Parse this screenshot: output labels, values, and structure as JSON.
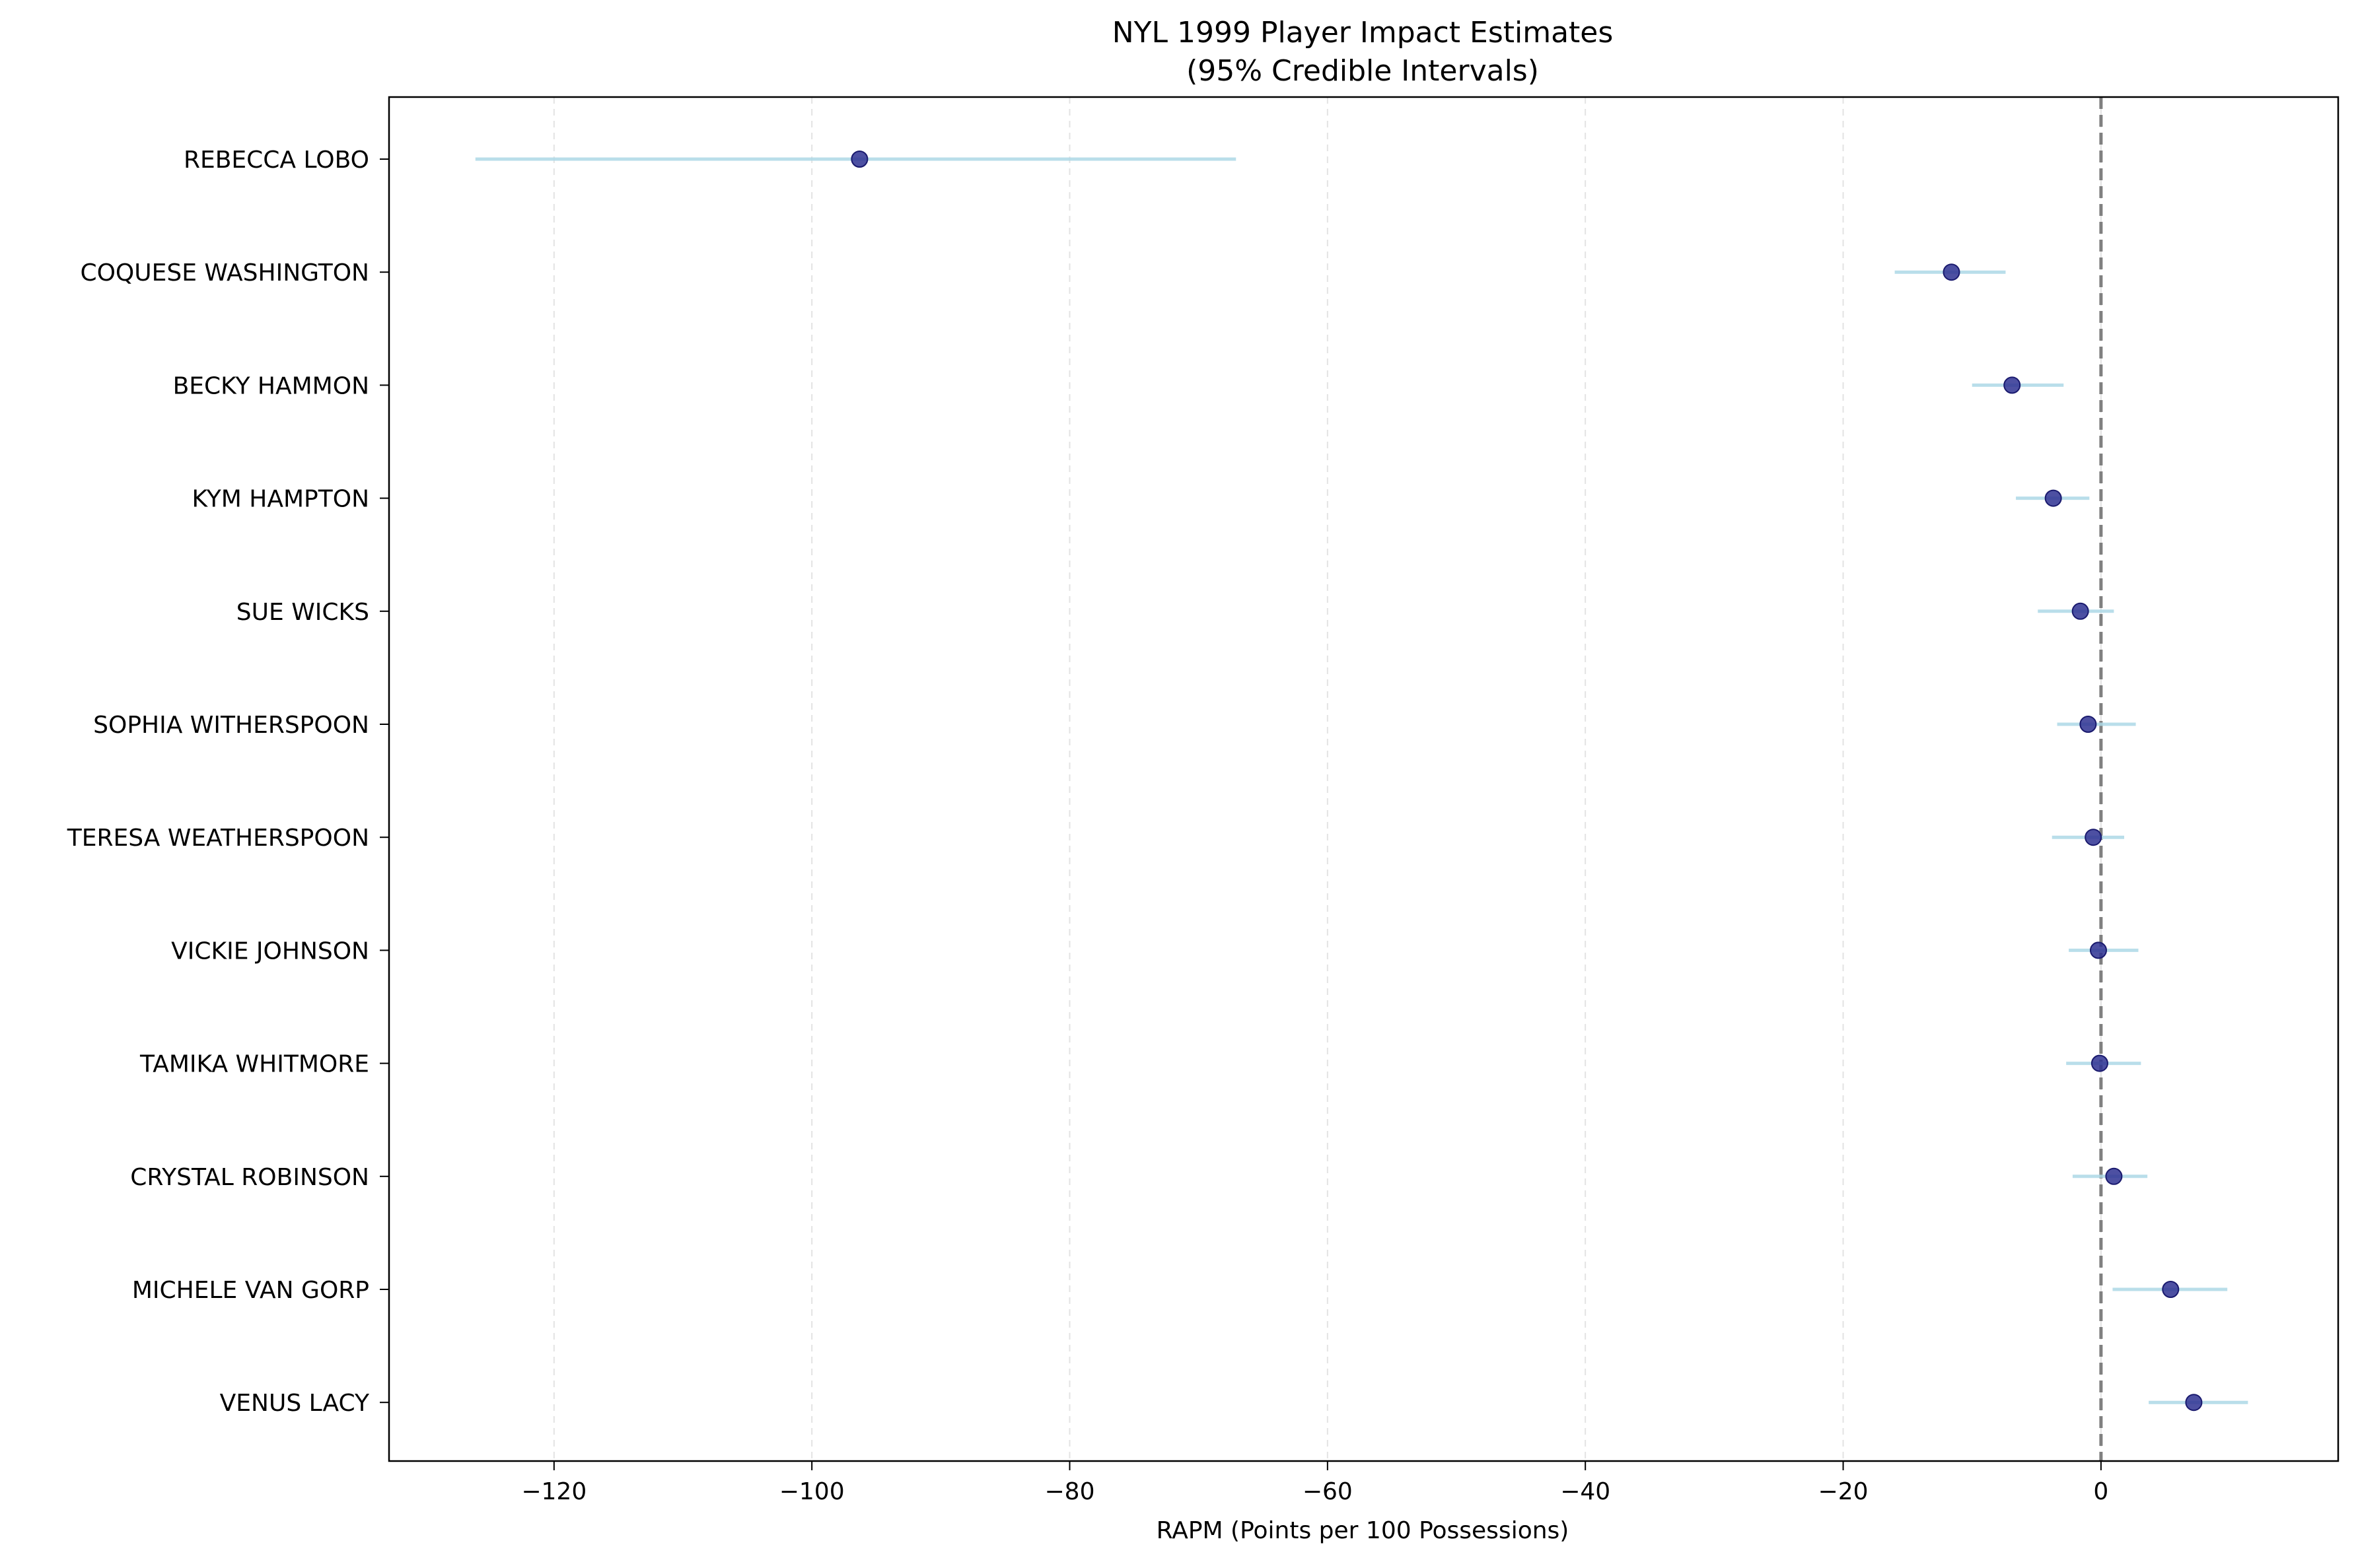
{
  "chart_data": {
    "type": "scatter",
    "title": "NYL 1999 Player Impact Estimates",
    "subtitle": "(95% Credible Intervals)",
    "xlabel": "RAPM (Points per 100 Possessions)",
    "ylabel": "",
    "xlim": [
      -132.8,
      18.4
    ],
    "x_ticks": [
      -120,
      -100,
      -80,
      -60,
      -40,
      -20,
      0
    ],
    "x_tick_labels": [
      "−120",
      "−100",
      "−80",
      "−60",
      "−40",
      "−20",
      "0"
    ],
    "grid": {
      "x": true,
      "y": false,
      "style": "dashed"
    },
    "reference_line": {
      "x": 0,
      "style": "dashed",
      "color": "#808080"
    },
    "marker_color": "#2e3192",
    "interval_color": "#add8e6",
    "players": [
      {
        "name": "REBECCA LOBO",
        "estimate": -96.3,
        "lower": -126.1,
        "upper": -67.1
      },
      {
        "name": "COQUESE WASHINGTON",
        "estimate": -11.6,
        "lower": -16.0,
        "upper": -7.4
      },
      {
        "name": "BECKY HAMMON",
        "estimate": -6.9,
        "lower": -10.0,
        "upper": -2.9
      },
      {
        "name": "KYM HAMPTON",
        "estimate": -3.7,
        "lower": -6.6,
        "upper": -0.9
      },
      {
        "name": "SUE WICKS",
        "estimate": -1.6,
        "lower": -4.9,
        "upper": 1.0
      },
      {
        "name": "SOPHIA WITHERSPOON",
        "estimate": -1.0,
        "lower": -3.4,
        "upper": 2.7
      },
      {
        "name": "TERESA WEATHERSPOON",
        "estimate": -0.6,
        "lower": -3.8,
        "upper": 1.8
      },
      {
        "name": "VICKIE JOHNSON",
        "estimate": -0.2,
        "lower": -2.5,
        "upper": 2.9
      },
      {
        "name": "TAMIKA WHITMORE",
        "estimate": -0.1,
        "lower": -2.7,
        "upper": 3.1
      },
      {
        "name": "CRYSTAL ROBINSON",
        "estimate": 1.0,
        "lower": -2.2,
        "upper": 3.6
      },
      {
        "name": "MICHELE VAN GORP",
        "estimate": 5.4,
        "lower": 0.9,
        "upper": 9.8
      },
      {
        "name": "VENUS LACY",
        "estimate": 7.2,
        "lower": 3.7,
        "upper": 11.4
      }
    ]
  }
}
